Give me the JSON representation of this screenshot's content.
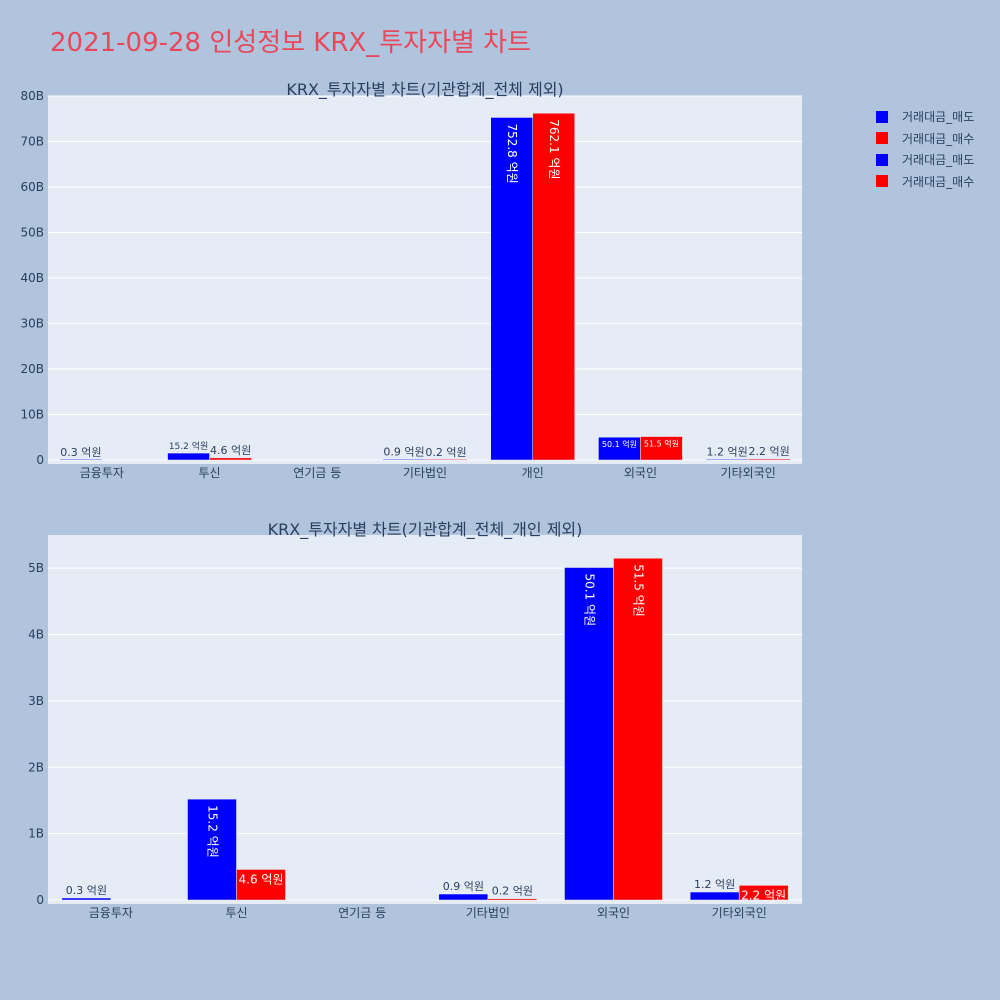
{
  "page": {
    "title": "2021-09-28 인성정보 KRX_투자자별 차트"
  },
  "colors": {
    "sell": "#0000ff",
    "buy": "#ff0000",
    "plot_bg": "#e5ecf6",
    "page_bg": "#b0c4de",
    "title": "#e8485a"
  },
  "legend": [
    {
      "label": "거래대금_매도",
      "color": "#0000ff"
    },
    {
      "label": "거래대금_매수",
      "color": "#ff0000"
    },
    {
      "label": "거래대금_매도",
      "color": "#0000ff"
    },
    {
      "label": "거래대금_매수",
      "color": "#ff0000"
    }
  ],
  "chart_data": [
    {
      "type": "bar",
      "title": "KRX_투자자별 차트(기관합계_전체 제외)",
      "categories": [
        "금융투자",
        "투신",
        "연기금 등",
        "기타법인",
        "개인",
        "외국인",
        "기타외국인"
      ],
      "yticks": [
        "0",
        "10B",
        "20B",
        "30B",
        "40B",
        "50B",
        "60B",
        "70B",
        "80B"
      ],
      "ylim": [
        0,
        80
      ],
      "yunit": "B",
      "grid": true,
      "series": [
        {
          "name": "거래대금_매도",
          "color": "#0000ff",
          "values": [
            0.03,
            1.52,
            null,
            0.09,
            75.28,
            5.01,
            0.12
          ],
          "labels": [
            "0.3 억원",
            "15.2 억원",
            "",
            "0.9 억원",
            "752.8 억원",
            "50.1 억원",
            "1.2 억원"
          ]
        },
        {
          "name": "거래대금_매수",
          "color": "#ff0000",
          "values": [
            null,
            0.46,
            null,
            0.02,
            76.21,
            5.15,
            0.22
          ],
          "labels": [
            "",
            "4.6 억원",
            "",
            "0.2 억원",
            "762.1 억원",
            "51.5 억원",
            "2.2 억원"
          ]
        }
      ]
    },
    {
      "type": "bar",
      "title": "KRX_투자자별 차트(기관합계_전체_개인 제외)",
      "categories": [
        "금융투자",
        "투신",
        "연기금 등",
        "기타법인",
        "외국인",
        "기타외국인"
      ],
      "yticks": [
        "0",
        "1B",
        "2B",
        "3B",
        "4B",
        "5B"
      ],
      "ylim": [
        0,
        5.5
      ],
      "yunit": "B",
      "grid": true,
      "series": [
        {
          "name": "거래대금_매도",
          "color": "#0000ff",
          "values": [
            0.03,
            1.52,
            null,
            0.09,
            5.01,
            0.12
          ],
          "labels": [
            "0.3 억원",
            "15.2 억원",
            "",
            "0.9 억원",
            "50.1 억원",
            "1.2 억원"
          ]
        },
        {
          "name": "거래대금_매수",
          "color": "#ff0000",
          "values": [
            null,
            0.46,
            null,
            0.02,
            5.15,
            0.22
          ],
          "labels": [
            "",
            "4.6 억원",
            "",
            "0.2 억원",
            "51.5 억원",
            "2.2 억원"
          ]
        }
      ]
    }
  ]
}
